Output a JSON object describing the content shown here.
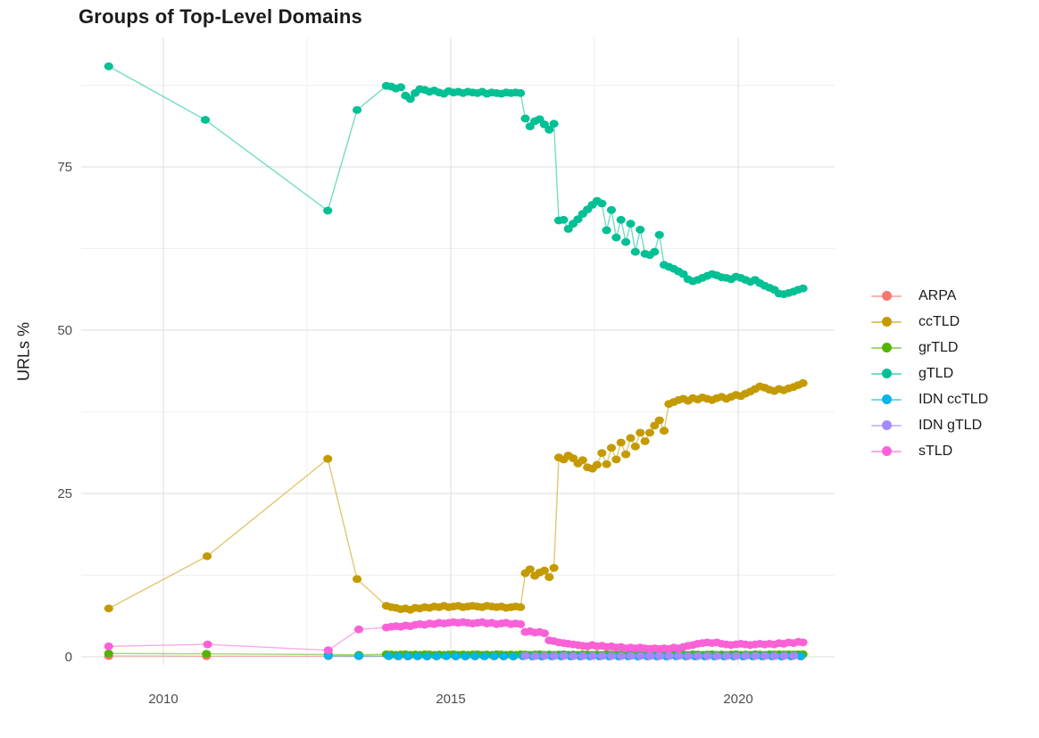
{
  "title": "Groups of Top-Level Domains",
  "y_axis_label": "URLs %",
  "chart_data": {
    "type": "scatter",
    "title": "Groups of Top-Level Domains",
    "xlabel": "",
    "ylabel": "URLs %",
    "xlim": [
      2008.571,
      2021.677
    ],
    "ylim": [
      -1.23,
      94.81
    ],
    "x_ticks": [
      2010,
      2015,
      2020
    ],
    "x_tick_labels": [
      "2010",
      "2015",
      "2020"
    ],
    "x_minor_ticks": [
      2012.5,
      2017.5
    ],
    "y_ticks": [
      0,
      25,
      50,
      75
    ],
    "y_tick_labels": [
      "0",
      "25",
      "50",
      "75"
    ],
    "y_minor_ticks": [
      12.5,
      37.5,
      62.5,
      87.5
    ],
    "grid": true,
    "legend_position": "right",
    "style": {
      "background": "#FFFFFF",
      "grid_major": "#E3E3E3",
      "grid_minor": "#EFEFEF",
      "tick_label_color": "#4D4D4D",
      "text_color": "#1B1B1B",
      "line_opacity": 0.55,
      "point_radius": 4.7,
      "line_width": 1.4
    },
    "series": [
      {
        "name": "ARPA",
        "color": "#F8766D",
        "sparse": [
          [
            2009.05,
            0.12
          ],
          [
            2010.75,
            0.1
          ],
          [
            2012.87,
            0.1
          ],
          [
            2013.4,
            0.08
          ]
        ],
        "dense": {
          "x0": 2013.92,
          "dx": 0.1667,
          "values": [
            0.08,
            0.06,
            0.05,
            0.07,
            0.05,
            0.06,
            0.08,
            0.05,
            0.06,
            0.05,
            0.07,
            0.05,
            0.06,
            0.05,
            0.08,
            0.06,
            0.05,
            0.07,
            0.05,
            0.06,
            0.05,
            0.08,
            0.06,
            0.05,
            0.06,
            0.07,
            0.05,
            0.06,
            0.05,
            0.06,
            0.08,
            0.05,
            0.06,
            0.05,
            0.07,
            0.06,
            0.05,
            0.06,
            0.05,
            0.06,
            0.07,
            0.05,
            0.06,
            0.05
          ]
        }
      },
      {
        "name": "ccTLD",
        "color": "#C49A00",
        "sparse": [
          [
            2009.05,
            7.4
          ],
          [
            2010.76,
            15.4
          ],
          [
            2012.86,
            30.3
          ],
          [
            2013.37,
            11.9
          ]
        ],
        "dense": {
          "x0": 2013.88,
          "dx": 0.0833,
          "values": [
            7.8,
            7.6,
            7.5,
            7.3,
            7.4,
            7.2,
            7.5,
            7.4,
            7.6,
            7.5,
            7.7,
            7.6,
            7.8,
            7.6,
            7.7,
            7.8,
            7.6,
            7.7,
            7.8,
            7.7,
            7.6,
            7.8,
            7.7,
            7.6,
            7.7,
            7.5,
            7.6,
            7.7,
            7.6,
            12.8,
            13.4,
            12.4,
            12.9,
            13.2,
            12.2,
            13.6,
            30.5,
            30.2,
            30.8,
            30.4,
            29.6,
            30.1,
            29.0,
            28.8,
            29.4,
            31.2,
            29.5,
            32.0,
            30.2,
            32.8,
            31.0,
            33.5,
            32.2,
            34.3,
            33.0,
            34.3,
            35.4,
            36.2,
            34.6,
            38.7,
            39.0,
            39.3,
            39.5,
            39.2,
            39.6,
            39.4,
            39.7,
            39.5,
            39.3,
            39.6,
            39.8,
            39.5,
            39.8,
            40.1,
            39.9,
            40.3,
            40.6,
            41.0,
            41.4,
            41.2,
            40.9,
            40.7,
            41.0,
            40.8,
            41.1,
            41.3,
            41.6,
            41.9
          ]
        }
      },
      {
        "name": "grTLD",
        "color": "#53B400",
        "sparse": [
          [
            2009.05,
            0.5
          ],
          [
            2010.75,
            0.45
          ],
          [
            2012.87,
            0.35
          ],
          [
            2013.4,
            0.3
          ]
        ],
        "dense": {
          "x0": 2013.88,
          "dx": 0.0833,
          "values": [
            0.4,
            0.35,
            0.3,
            0.35,
            0.4,
            0.3,
            0.35,
            0.3,
            0.4,
            0.35,
            0.3,
            0.35,
            0.3,
            0.35,
            0.4,
            0.3,
            0.35,
            0.3,
            0.35,
            0.4,
            0.3,
            0.35,
            0.3,
            0.4,
            0.35,
            0.3,
            0.35,
            0.3,
            0.4,
            0.35,
            0.3,
            0.35,
            0.4,
            0.3,
            0.35,
            0.3,
            0.35,
            0.4,
            0.3,
            0.35,
            0.3,
            0.4,
            0.35,
            0.3,
            0.35,
            0.3,
            0.4,
            0.35,
            0.3,
            0.35,
            0.4,
            0.3,
            0.35,
            0.3,
            0.35,
            0.4,
            0.3,
            0.35,
            0.3,
            0.4,
            0.35,
            0.3,
            0.35,
            0.3,
            0.4,
            0.35,
            0.3,
            0.35,
            0.4,
            0.3,
            0.35,
            0.3,
            0.35,
            0.4,
            0.3,
            0.35,
            0.3,
            0.4,
            0.35,
            0.3,
            0.4,
            0.35,
            0.4,
            0.35,
            0.4,
            0.35,
            0.4,
            0.4
          ]
        }
      },
      {
        "name": "gTLD",
        "color": "#00C094",
        "sparse": [
          [
            2009.05,
            90.4
          ],
          [
            2010.73,
            82.2
          ],
          [
            2012.86,
            68.3
          ],
          [
            2013.37,
            83.7
          ]
        ],
        "dense": {
          "x0": 2013.88,
          "dx": 0.0833,
          "values": [
            87.4,
            87.3,
            87.0,
            87.2,
            85.9,
            85.4,
            86.3,
            86.9,
            86.8,
            86.5,
            86.7,
            86.4,
            86.2,
            86.6,
            86.4,
            86.5,
            86.3,
            86.5,
            86.4,
            86.3,
            86.5,
            86.2,
            86.4,
            86.3,
            86.2,
            86.4,
            86.3,
            86.4,
            86.3,
            82.4,
            81.2,
            82.0,
            82.3,
            81.5,
            80.7,
            81.6,
            66.8,
            66.9,
            65.5,
            66.3,
            67.0,
            67.8,
            68.5,
            69.2,
            69.8,
            69.4,
            65.3,
            68.4,
            64.2,
            66.9,
            63.5,
            66.3,
            62.0,
            65.4,
            61.7,
            61.5,
            62.0,
            64.6,
            60.0,
            59.7,
            59.4,
            59.0,
            58.6,
            57.8,
            57.5,
            57.7,
            58.0,
            58.3,
            58.6,
            58.4,
            58.1,
            58.0,
            57.8,
            58.2,
            58.0,
            57.7,
            57.4,
            57.7,
            57.2,
            56.8,
            56.5,
            56.2,
            55.6,
            55.5,
            55.7,
            55.9,
            56.2,
            56.4
          ]
        }
      },
      {
        "name": "IDN ccTLD",
        "color": "#00B6EB",
        "sparse": [
          [
            2012.87,
            0.15
          ],
          [
            2013.4,
            0.12
          ]
        ],
        "dense": {
          "x0": 2013.92,
          "dx": 0.1667,
          "values": [
            0.12,
            0.1,
            0.08,
            0.1,
            0.07,
            0.09,
            0.1,
            0.08,
            0.07,
            0.09,
            0.08,
            0.1,
            0.08,
            0.07,
            0.09,
            0.08,
            0.07,
            0.08,
            0.09,
            0.07,
            0.08,
            0.07,
            0.09,
            0.08,
            0.07,
            0.08,
            0.07,
            0.09,
            0.08,
            0.07,
            0.08,
            0.09,
            0.07,
            0.08,
            0.07,
            0.08,
            0.09,
            0.07,
            0.08,
            0.07,
            0.08,
            0.07,
            0.09,
            0.08
          ]
        }
      },
      {
        "name": "IDN gTLD",
        "color": "#A58AFF",
        "sparse": [],
        "dense": {
          "x0": 2016.3,
          "dx": 0.1667,
          "values": [
            0.15,
            0.12,
            0.14,
            0.13,
            0.15,
            0.12,
            0.14,
            0.12,
            0.13,
            0.15,
            0.12,
            0.14,
            0.13,
            0.12,
            0.14,
            0.13,
            0.15,
            0.12,
            0.14,
            0.13,
            0.12,
            0.14,
            0.13,
            0.15,
            0.13,
            0.14,
            0.12,
            0.14,
            0.15
          ]
        }
      },
      {
        "name": "sTLD",
        "color": "#FB61D7",
        "sparse": [
          [
            2009.05,
            1.6
          ],
          [
            2010.77,
            1.9
          ],
          [
            2012.87,
            1.0
          ],
          [
            2013.4,
            4.2
          ]
        ],
        "dense": {
          "x0": 2013.88,
          "dx": 0.0833,
          "values": [
            4.5,
            4.6,
            4.7,
            4.6,
            4.8,
            4.7,
            4.9,
            5.0,
            4.9,
            5.1,
            5.0,
            5.2,
            5.1,
            5.2,
            5.3,
            5.2,
            5.3,
            5.2,
            5.1,
            5.2,
            5.3,
            5.1,
            5.2,
            5.0,
            5.1,
            5.2,
            5.0,
            5.1,
            5.0,
            3.8,
            3.9,
            3.7,
            3.8,
            3.6,
            2.5,
            2.4,
            2.2,
            2.1,
            2.0,
            1.9,
            1.8,
            1.7,
            1.6,
            1.8,
            1.6,
            1.7,
            1.5,
            1.6,
            1.4,
            1.5,
            1.3,
            1.4,
            1.3,
            1.4,
            1.3,
            1.2,
            1.3,
            1.2,
            1.3,
            1.2,
            1.4,
            1.3,
            1.5,
            1.7,
            1.8,
            2.0,
            2.1,
            2.2,
            2.1,
            2.2,
            2.0,
            1.9,
            1.8,
            1.9,
            2.0,
            1.9,
            1.8,
            1.9,
            2.0,
            1.9,
            2.0,
            1.9,
            2.1,
            2.0,
            2.2,
            2.1,
            2.3,
            2.2
          ]
        }
      }
    ]
  }
}
